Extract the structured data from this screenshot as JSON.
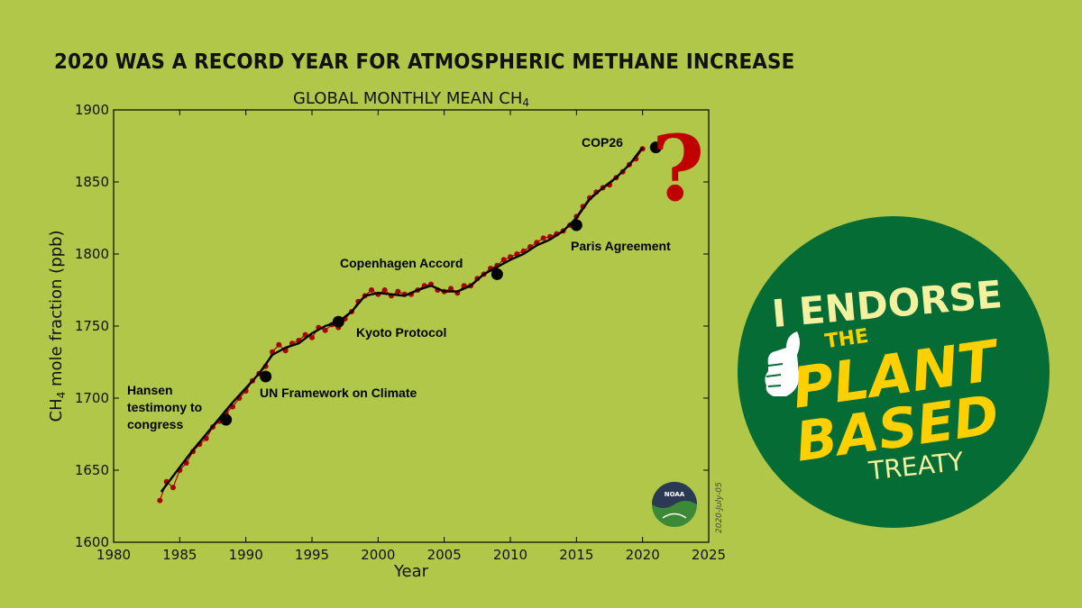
{
  "headline": "2020 WAS A RECORD YEAR FOR ATMOSPHERIC METHANE INCREASE",
  "colors": {
    "background": "#b1c749",
    "data_points": "#a80000",
    "trend": "#000000",
    "question_mark": "#c00000",
    "badge_green": "#046c34",
    "badge_yellow": "#ffd000",
    "badge_cream": "#f3f0a0"
  },
  "chart_data": {
    "type": "line",
    "title": "GLOBAL MONTHLY MEAN CH",
    "title_subscript": "4",
    "xlabel": "Year",
    "ylabel_prefix": "CH",
    "ylabel_subscript": "4",
    "ylabel_suffix": " mole fraction (ppb)",
    "xlim": [
      1980,
      2025
    ],
    "ylim": [
      1600,
      1900
    ],
    "xticks": [
      1980,
      1985,
      1990,
      1995,
      2000,
      2005,
      2010,
      2015,
      2020,
      2025
    ],
    "yticks": [
      1600,
      1650,
      1700,
      1750,
      1800,
      1850,
      1900
    ],
    "grid": false,
    "date_stamp": "2020-July-05",
    "series": [
      {
        "kind": "monthly_mean_points",
        "x": [
          1983.5,
          1984.0,
          1984.5,
          1985.0,
          1985.5,
          1986.0,
          1986.5,
          1987.0,
          1987.5,
          1988.0,
          1988.5,
          1989.0,
          1989.5,
          1990.0,
          1990.5,
          1991.0,
          1991.5,
          1992.0,
          1992.5,
          1993.0,
          1993.5,
          1994.0,
          1994.5,
          1995.0,
          1995.5,
          1996.0,
          1996.5,
          1997.0,
          1997.5,
          1998.0,
          1998.5,
          1999.0,
          1999.5,
          2000.0,
          2000.5,
          2001.0,
          2001.5,
          2002.0,
          2002.5,
          2003.0,
          2003.5,
          2004.0,
          2004.5,
          2005.0,
          2005.5,
          2006.0,
          2006.5,
          2007.0,
          2007.5,
          2008.0,
          2008.5,
          2009.0,
          2009.5,
          2010.0,
          2010.5,
          2011.0,
          2011.5,
          2012.0,
          2012.5,
          2013.0,
          2013.5,
          2014.0,
          2014.5,
          2015.0,
          2015.5,
          2016.0,
          2016.5,
          2017.0,
          2017.5,
          2018.0,
          2018.5,
          2019.0,
          2019.5,
          2020.0
        ],
        "y": [
          1629,
          1642,
          1638,
          1650,
          1655,
          1663,
          1668,
          1672,
          1680,
          1684,
          1690,
          1694,
          1700,
          1705,
          1712,
          1717,
          1722,
          1732,
          1737,
          1733,
          1738,
          1740,
          1744,
          1742,
          1749,
          1747,
          1751,
          1749,
          1755,
          1760,
          1767,
          1771,
          1775,
          1772,
          1775,
          1771,
          1774,
          1772,
          1772,
          1775,
          1778,
          1779,
          1775,
          1774,
          1776,
          1773,
          1778,
          1778,
          1783,
          1786,
          1790,
          1792,
          1796,
          1798,
          1800,
          1802,
          1805,
          1808,
          1811,
          1812,
          1814,
          1816,
          1820,
          1826,
          1833,
          1839,
          1843,
          1846,
          1848,
          1853,
          1857,
          1862,
          1866,
          1873
        ]
      },
      {
        "kind": "deseasonalized_trend",
        "x": [
          1983.6,
          1985,
          1986,
          1987,
          1988,
          1989,
          1990,
          1991,
          1992,
          1993,
          1994,
          1995,
          1996,
          1997,
          1998,
          1999,
          2000,
          2001,
          2002,
          2003,
          2004,
          2005,
          2006,
          2007,
          2008,
          2009,
          2010,
          2011,
          2012,
          2013,
          2014,
          2015,
          2016,
          2017,
          2018,
          2019,
          2020
        ],
        "y": [
          1635,
          1652,
          1664,
          1675,
          1686,
          1697,
          1707,
          1717,
          1730,
          1735,
          1738,
          1745,
          1750,
          1753,
          1760,
          1771,
          1773,
          1772,
          1771,
          1775,
          1778,
          1774,
          1774,
          1778,
          1786,
          1791,
          1796,
          1800,
          1806,
          1810,
          1816,
          1825,
          1838,
          1846,
          1853,
          1862,
          1874
        ]
      }
    ],
    "milestones": [
      {
        "label_lines": [
          "Hansen",
          "testimony to",
          "congress"
        ],
        "x": 1988.5,
        "y": 1685
      },
      {
        "label_lines": [
          "UN Framework on Climate"
        ],
        "x": 1991.5,
        "y": 1715
      },
      {
        "label_lines": [
          "Kyoto Protocol"
        ],
        "x": 1997.0,
        "y": 1753
      },
      {
        "label_lines": [
          "Copenhagen Accord"
        ],
        "x": 2009.0,
        "y": 1786
      },
      {
        "label_lines": [
          "Paris Agreement"
        ],
        "x": 2015.0,
        "y": 1820
      },
      {
        "label_lines": [
          "COP26"
        ],
        "x": 2021.0,
        "y": 1874
      }
    ],
    "question_mark": "?"
  },
  "badge": {
    "line1": "I ENDORSE",
    "line2": "THE",
    "line3": "PLANT",
    "line4": "BASED",
    "line5": "TREATY"
  },
  "noaa_logo_text": "NOAA"
}
